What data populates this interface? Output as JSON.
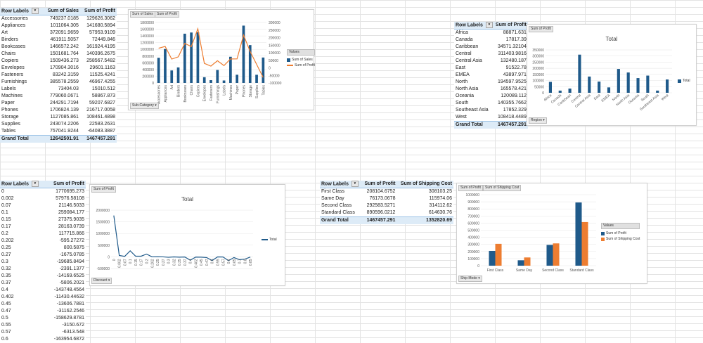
{
  "colors": {
    "blue": "#1f5a8a",
    "orange": "#ed7d31",
    "header_bg": "#ddebf7"
  },
  "pivot1": {
    "headers": [
      "Row Labels",
      "Sum of Sales",
      "Sum of Profit"
    ],
    "rows": [
      [
        "Accessories",
        "749237.0185",
        "129626.3062"
      ],
      [
        "Appliances",
        "1011064.305",
        "141680.5894"
      ],
      [
        "Art",
        "372091.9659",
        "57953.9109"
      ],
      [
        "Binders",
        "461911.5057",
        "72449.846"
      ],
      [
        "Bookcases",
        "1466572.242",
        "161924.4195"
      ],
      [
        "Chairs",
        "1501681.764",
        "140396.2675"
      ],
      [
        "Copiers",
        "1509436.273",
        "258567.5482"
      ],
      [
        "Envelopes",
        "170904.3016",
        "29601.1163"
      ],
      [
        "Fasteners",
        "83242.3159",
        "11525.4241"
      ],
      [
        "Furnishings",
        "385578.2559",
        "46967.4255"
      ],
      [
        "Labels",
        "73404.03",
        "15010.512"
      ],
      [
        "Machines",
        "779060.0671",
        "58867.873"
      ],
      [
        "Paper",
        "244291.7194",
        "59207.6827"
      ],
      [
        "Phones",
        "1706824.139",
        "216717.0058"
      ],
      [
        "Storage",
        "1127085.861",
        "108461.4898"
      ],
      [
        "Supplies",
        "243074.2206",
        "22583.2631"
      ],
      [
        "Tables",
        "757041.9244",
        "-64083.3887"
      ]
    ],
    "total": [
      "Grand Total",
      "12642501.91",
      "1467457.291"
    ]
  },
  "chart1": {
    "buttons": [
      "Sum of Sales",
      "Sum of Profit"
    ],
    "filter_button": "Sub-Category",
    "legend_title": "Values",
    "legend": [
      "Sum of Sales",
      "Sum of Profit"
    ],
    "left_ticks": [
      "1800000",
      "1600000",
      "1400000",
      "1200000",
      "1000000",
      "800000",
      "600000",
      "400000",
      "200000",
      "0"
    ],
    "right_ticks": [
      "300000",
      "250000",
      "200000",
      "150000",
      "100000",
      "50000",
      "0",
      "-50000",
      "-100000"
    ]
  },
  "pivot2": {
    "headers": [
      "Row Labels",
      "Sum of Profit"
    ],
    "rows": [
      [
        "Africa",
        "88871.631"
      ],
      [
        "Canada",
        "17817.39"
      ],
      [
        "Caribbean",
        "34571.32104"
      ],
      [
        "Central",
        "311403.9816"
      ],
      [
        "Central Asia",
        "132480.187"
      ],
      [
        "East",
        "91522.78"
      ],
      [
        "EMEA",
        "43897.971"
      ],
      [
        "North",
        "194597.9525"
      ],
      [
        "North Asia",
        "165578.421"
      ],
      [
        "Oceania",
        "120089.112"
      ],
      [
        "South",
        "140355.7662"
      ],
      [
        "Southeast Asia",
        "17852.329"
      ],
      [
        "West",
        "108418.4489"
      ]
    ],
    "total": [
      "Grand Total",
      "1467457.291"
    ]
  },
  "chart2": {
    "button": "Sum of Profit",
    "title": "Total",
    "legend": "Total",
    "filter_button": "Region",
    "ticks": [
      "350000",
      "300000",
      "250000",
      "200000",
      "150000",
      "100000",
      "50000",
      "0"
    ]
  },
  "pivot3": {
    "headers": [
      "Row Labels",
      "Sum of Profit"
    ],
    "rows": [
      [
        "0",
        "1770695.273"
      ],
      [
        "0.002",
        "57976.58108"
      ],
      [
        "0.07",
        "21146.5033"
      ],
      [
        "0.1",
        "259084.177"
      ],
      [
        "0.15",
        "27375.9035"
      ],
      [
        "0.17",
        "28163.0739"
      ],
      [
        "0.2",
        "117715.866"
      ],
      [
        "0.202",
        "-595.27272"
      ],
      [
        "0.25",
        "800.5875"
      ],
      [
        "0.27",
        "-1675.0785"
      ],
      [
        "0.3",
        "-19685.8494"
      ],
      [
        "0.32",
        "-2391.1377"
      ],
      [
        "0.35",
        "-14169.6525"
      ],
      [
        "0.37",
        "-5806.2021"
      ],
      [
        "0.4",
        "-143748.4564"
      ],
      [
        "0.402",
        "-11430.44632"
      ],
      [
        "0.45",
        "-13606.7881"
      ],
      [
        "0.47",
        "-31162.2546"
      ],
      [
        "0.5",
        "-158629.8781"
      ],
      [
        "0.55",
        "-3150.672"
      ],
      [
        "0.57",
        "-6313.548"
      ],
      [
        "0.6",
        "-163954.6872"
      ]
    ]
  },
  "chart3": {
    "button": "Sum of Profit",
    "title": "Total",
    "legend": "Total",
    "filter_button": "Discount",
    "ticks": [
      "2000000",
      "1500000",
      "1000000",
      "500000",
      "0",
      "-500000"
    ]
  },
  "pivot4": {
    "headers": [
      "Row Labels",
      "Sum of Profit",
      "Sum of Shipping Cost"
    ],
    "rows": [
      [
        "First Class",
        "208104.6752",
        "308103.25"
      ],
      [
        "Same Day",
        "76173.0678",
        "115974.06"
      ],
      [
        "Second Class",
        "292583.5271",
        "314112.62"
      ],
      [
        "Standard Class",
        "890596.0212",
        "614630.76"
      ]
    ],
    "total": [
      "Grand Total",
      "1467457.291",
      "1352820.69"
    ]
  },
  "chart4": {
    "buttons": [
      "Sum of Profit",
      "Sum of Shipping Cost"
    ],
    "filter_button": "Ship Mode",
    "legend_title": "Values",
    "legend": [
      "Sum of Profit",
      "Sum of Shipping Cost"
    ],
    "ticks": [
      "1000000",
      "900000",
      "800000",
      "700000",
      "600000",
      "500000",
      "400000",
      "300000",
      "200000",
      "100000",
      "0"
    ]
  },
  "chart_data": [
    {
      "type": "bar",
      "categories": [
        "Accessories",
        "Appliances",
        "Art",
        "Binders",
        "Bookcases",
        "Chairs",
        "Copiers",
        "Envelopes",
        "Fasteners",
        "Furnishings",
        "Labels",
        "Machines",
        "Paper",
        "Phones",
        "Storage",
        "Supplies",
        "Tables"
      ],
      "series": [
        {
          "name": "Sum of Sales",
          "values": [
            749237.0185,
            1011064.305,
            372091.9659,
            461911.5057,
            1466572.242,
            1501681.764,
            1509436.273,
            170904.3016,
            83242.3159,
            385578.2559,
            73404.03,
            779060.0671,
            244291.7194,
            1706824.139,
            1127085.861,
            243074.2206,
            757041.9244
          ]
        },
        {
          "name": "Sum of Profit",
          "values": [
            129626.3062,
            141680.5894,
            57953.9109,
            72449.846,
            161924.4195,
            140396.2675,
            258567.5482,
            29601.1163,
            11525.4241,
            46967.4255,
            15010.512,
            58867.873,
            59207.6827,
            216717.0058,
            108461.4898,
            22583.2631,
            -64083.3887
          ]
        }
      ],
      "ylim": [
        0,
        1800000
      ],
      "y2lim": [
        -100000,
        300000
      ]
    },
    {
      "type": "bar",
      "title": "Total",
      "categories": [
        "Africa",
        "Canada",
        "Caribbean",
        "Central",
        "Central Asia",
        "East",
        "EMEA",
        "North",
        "North Asia",
        "Oceania",
        "South",
        "Southeast Asia",
        "West"
      ],
      "series": [
        {
          "name": "Total",
          "values": [
            88871.631,
            17817.39,
            34571.32104,
            311403.9816,
            132480.187,
            91522.78,
            43897.971,
            194597.9525,
            165578.421,
            120089.112,
            140355.7662,
            17852.329,
            108418.4489
          ]
        }
      ],
      "ylim": [
        0,
        350000
      ]
    },
    {
      "type": "line",
      "title": "Total",
      "x": [
        "0",
        "0.002",
        "0.07",
        "0.1",
        "0.15",
        "0.17",
        "0.2",
        "0.202",
        "0.25",
        "0.27",
        "0.3",
        "0.32",
        "0.35",
        "0.37",
        "0.4",
        "0.402",
        "0.45",
        "0.47",
        "0.5",
        "0.55",
        "0.57",
        "0.6",
        "0.65",
        "0.7",
        "0.8",
        "0.85"
      ],
      "series": [
        {
          "name": "Total",
          "values": [
            1770695.273,
            57976.58108,
            21146.5033,
            259084.177,
            27375.9035,
            28163.0739,
            117715.866,
            -595.27272,
            800.5875,
            -1675.0785,
            -19685.8494,
            -2391.1377,
            -14169.6525,
            -5806.2021,
            -143748.4564,
            -11430.44632,
            -13606.7881,
            -31162.2546,
            -158629.8781,
            -3150.672,
            -6313.548,
            -163954.6872,
            -30000,
            -120000,
            -100000,
            -10000
          ]
        }
      ],
      "ylim": [
        -500000,
        2000000
      ]
    },
    {
      "type": "bar",
      "categories": [
        "First Class",
        "Same Day",
        "Second Class",
        "Standard Class"
      ],
      "series": [
        {
          "name": "Sum of Profit",
          "values": [
            208104.6752,
            76173.0678,
            292583.5271,
            890596.0212
          ]
        },
        {
          "name": "Sum of Shipping Cost",
          "values": [
            308103.25,
            115974.06,
            314112.62,
            614630.76
          ]
        }
      ],
      "ylim": [
        0,
        1000000
      ]
    }
  ]
}
